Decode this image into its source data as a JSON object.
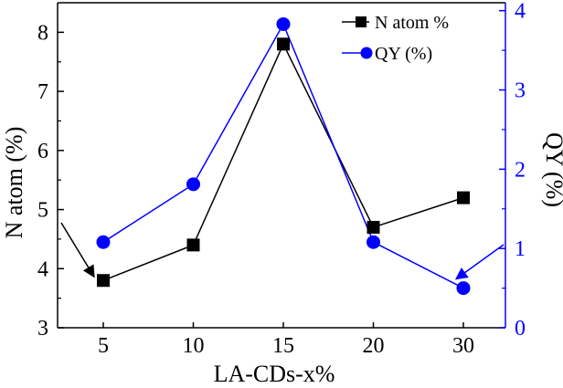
{
  "chart_data": {
    "type": "line",
    "categories": [
      "5",
      "10",
      "15",
      "20",
      "30"
    ],
    "xlabel": "LA-CDs-x%",
    "y_left": {
      "label": "N atom (%)",
      "lim": [
        3,
        8.5
      ],
      "ticks": [
        3,
        4,
        5,
        6,
        7,
        8
      ]
    },
    "y_right": {
      "label": "QY (%)",
      "lim": [
        0,
        4.1
      ],
      "ticks": [
        0,
        1,
        2,
        3,
        4
      ]
    },
    "series": [
      {
        "name": "N atom %",
        "axis": "left",
        "marker": "square",
        "color": "#000000",
        "values": [
          3.8,
          4.4,
          7.8,
          4.7,
          5.2
        ]
      },
      {
        "name": "QY (%)",
        "axis": "right",
        "marker": "circle",
        "color": "#0000ff",
        "values": [
          1.08,
          1.81,
          3.83,
          1.08,
          0.5
        ]
      }
    ],
    "legend_position": "top-right",
    "annotations": [
      {
        "type": "arrow",
        "color": "#000000",
        "points_to": "N atom % at 5",
        "target_axis": "left"
      },
      {
        "type": "arrow",
        "color": "#0000ff",
        "points_to": "QY (%) at 30",
        "target_axis": "right"
      }
    ],
    "grid": false
  }
}
